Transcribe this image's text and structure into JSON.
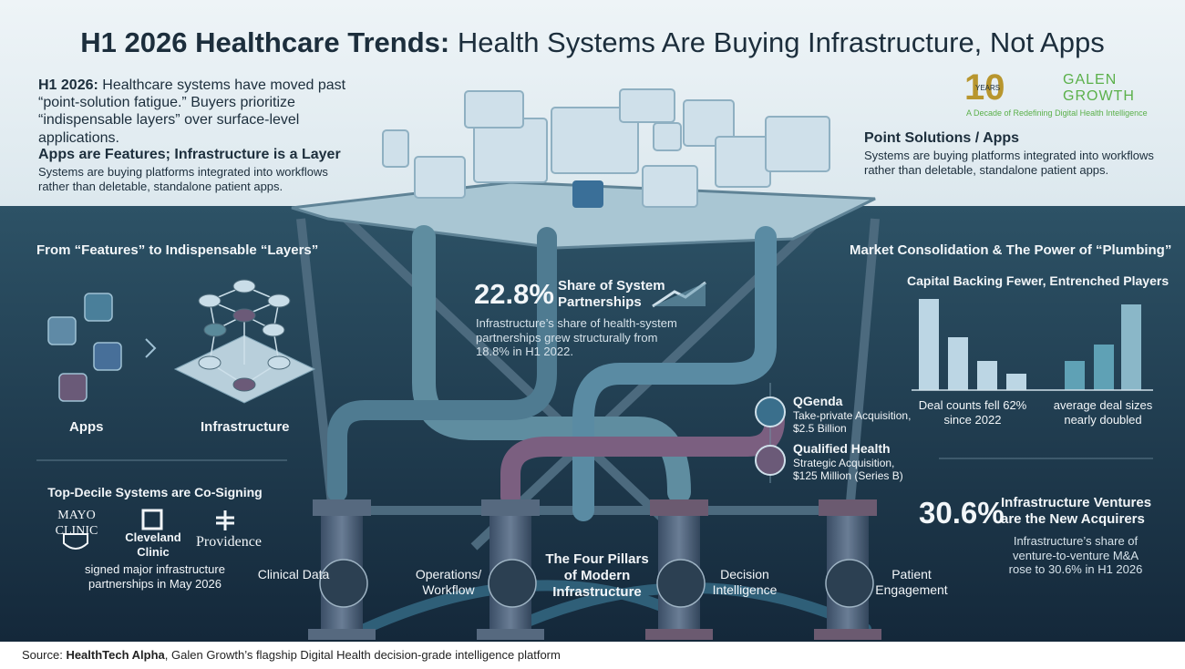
{
  "header": {
    "title_lead": "H1 2026 Healthcare Trends:",
    "title_rest": "Health Systems Are Buying Infrastructure, Not Apps"
  },
  "intro": {
    "label": "H1 2026:",
    "text": "Healthcare systems have moved past “point-solution fatigue.” Buyers prioritize “indispensable layers” over surface-level applications."
  },
  "apps_features": {
    "heading": "Apps are Features; Infrastructure is a Layer",
    "text": "Systems are buying platforms integrated into workflows rather than deletable, standalone patient apps."
  },
  "point_solutions": {
    "heading": "Point Solutions / Apps",
    "text": "Systems are buying platforms integrated into workflows rather than deletable, standalone patient apps."
  },
  "logo": {
    "years": "10",
    "years_word": "YEARS",
    "name_line1": "GALEN",
    "name_line2": "GROWTH",
    "tagline": "A Decade of Redefining Digital Health Intelligence"
  },
  "features_layers": {
    "heading": "From “Features” to Indispensable “Layers”",
    "apps": "Apps",
    "infrastructure": "Infrastructure"
  },
  "cosign": {
    "heading": "Top-Decile Systems are Co-Signing",
    "logos": [
      "MAYO CLINIC",
      "Cleveland Clinic",
      "Providence"
    ],
    "text": "signed major infrastructure partnerships in May 2026"
  },
  "stat1": {
    "value": "22.8%",
    "label": "Share of System Partnerships",
    "text": "Infrastructure’s share of health-system partnerships grew structurally from 18.8% in H1 2022."
  },
  "market": {
    "heading": "Market Consolidation & The Power of “Plumbing”",
    "subheading": "Capital Backing Fewer, Entrenched Players",
    "captions": [
      "Deal counts fell 62% since 2022",
      "average deal sizes nearly doubled"
    ]
  },
  "deals": [
    {
      "name": "QGenda",
      "detail": "Take-private Acquisition, $2.5 Billion"
    },
    {
      "name": "Qualified Health",
      "detail": "Strategic Acquisition, $125 Million (Series B)"
    }
  ],
  "stat2": {
    "value": "30.6%",
    "label": "Infrastructure Ventures are the New Acquirers",
    "text": "Infrastructure’s share of venture-to-venture M&A rose to 30.6% in H1 2026"
  },
  "pillars": {
    "title": "The Four Pillars of Modern Infrastructure",
    "items": [
      "Clinical Data",
      "Operations/ Workflow",
      "Decision Intelligence",
      "Patient Engagement"
    ]
  },
  "footer": {
    "label": "Source:",
    "source": "HealthTech Alpha",
    "text": ", Galen Growth’s flagship Digital Health decision-grade intelligence platform"
  }
}
